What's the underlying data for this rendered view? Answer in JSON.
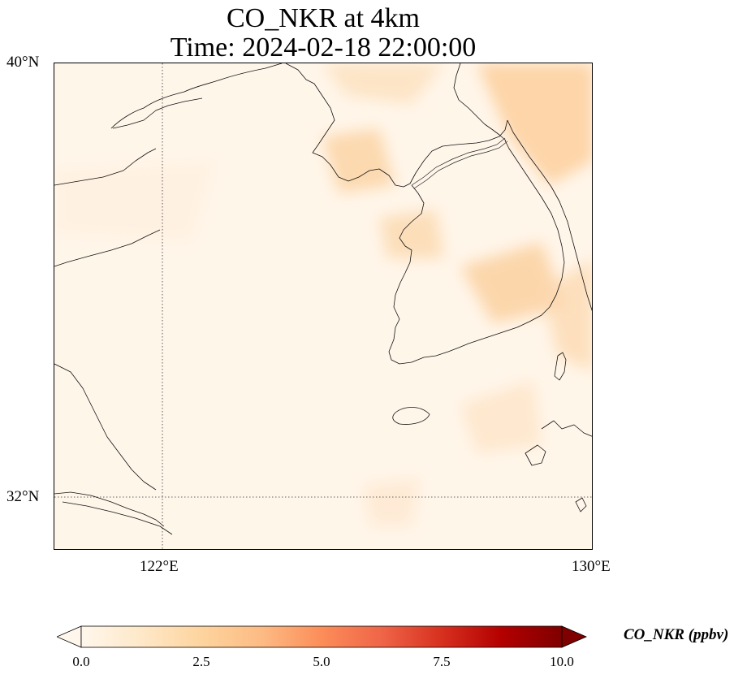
{
  "title": {
    "line1": "CO_NKR at 4km",
    "line2": "Time: 2024-02-18 22:00:00"
  },
  "map": {
    "extent": {
      "lon_min": 120,
      "lon_max": 130,
      "lat_min": 31,
      "lat_max": 40
    },
    "gridlines": {
      "lon": 122,
      "lat": 32,
      "style": "dotted"
    },
    "lat_ticks": [
      "40°N",
      "32°N"
    ],
    "lon_ticks": [
      "122°E",
      "130°E"
    ],
    "field_description": "CO_NKR concentration field, mostly near 0-2 ppbv with light orange patches over Korea and north Yellow Sea",
    "coastline_color": "#000000"
  },
  "colorbar": {
    "label": "CO_NKR (ppbv)",
    "ticks": [
      "0.0",
      "2.5",
      "5.0",
      "7.5",
      "10.0"
    ],
    "min": 0,
    "max": 10,
    "colormap": "OrRd",
    "extend": "both",
    "colors": [
      "#fff7ec",
      "#fee8c8",
      "#fdd49e",
      "#fdbb84",
      "#fc8d59",
      "#ef6548",
      "#d7301f",
      "#b30000",
      "#7f0000"
    ]
  }
}
